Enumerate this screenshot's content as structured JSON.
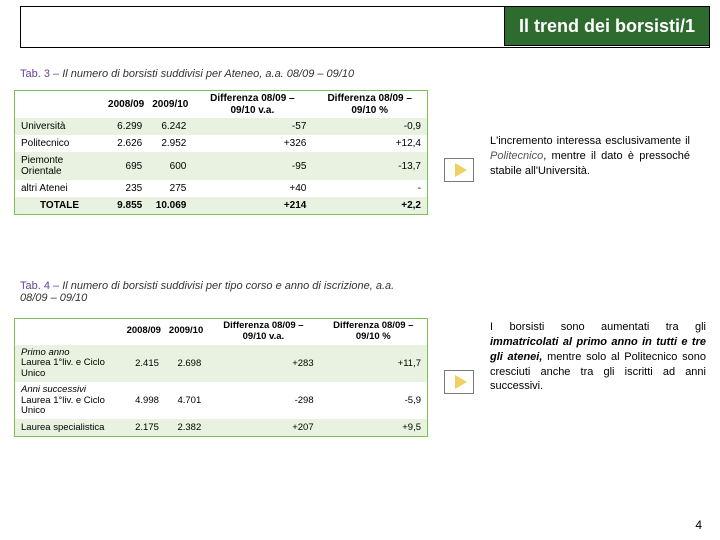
{
  "header": {
    "title": "Il trend dei borsisti/1"
  },
  "tab3": {
    "lead": "Tab. 3 – ",
    "caption": "Il numero di borsisti suddivisi per Ateneo, a.a. 08/09 – 09/10",
    "columns": [
      "",
      "2008/09",
      "2009/10",
      "Differenza 08/09 – 09/10 v.a.",
      "Differenza 08/09 – 09/10 %"
    ],
    "rows": [
      {
        "label": "Università",
        "c1": "6.299",
        "c2": "6.242",
        "c3": "-57",
        "c4": "-0,9"
      },
      {
        "label": "Politecnico",
        "c1": "2.626",
        "c2": "2.952",
        "c3": "+326",
        "c4": "+12,4"
      },
      {
        "label": "Piemonte Orientale",
        "c1": "695",
        "c2": "600",
        "c3": "-95",
        "c4": "-13,7"
      },
      {
        "label": "altri Atenei",
        "c1": "235",
        "c2": "275",
        "c3": "+40",
        "c4": "-"
      }
    ],
    "total": {
      "label": "TOTALE",
      "c1": "9.855",
      "c2": "10.069",
      "c3": "+214",
      "c4": "+2,2"
    }
  },
  "side1": {
    "t1": "L'incremento interessa esclusivamente il ",
    "em": "Politecnico",
    "t2": ", mentre il dato è pressoché stabile all'Università."
  },
  "tab4": {
    "lead": "Tab. 4 – ",
    "caption": "Il numero di borsisti suddivisi per tipo corso e anno di iscrizione, a.a. 08/09 – 09/10",
    "columns": [
      "",
      "2008/09",
      "2009/10",
      "Differenza 08/09 – 09/10 v.a.",
      "Differenza 08/09 – 09/10 %"
    ],
    "rows": [
      {
        "label": "Primo anno\nLaurea 1°liv. e Ciclo Unico",
        "c1": "2.415",
        "c2": "2.698",
        "c3": "+283",
        "c4": "+11,7"
      },
      {
        "label": "Anni successivi\nLaurea 1°liv. e Ciclo Unico",
        "c1": "4.998",
        "c2": "4.701",
        "c3": "-298",
        "c4": "-5,9"
      },
      {
        "label": "Laurea specialistica",
        "c1": "2.175",
        "c2": "2.382",
        "c3": "+207",
        "c4": "+9,5"
      }
    ]
  },
  "side2": {
    "t1": "I borsisti sono aumentati tra gli ",
    "em": "immatricolati al primo anno in tutti e tre gli atenei,",
    "t2": " mentre solo al Politecnico sono cresciuti anche tra gli iscritti ad anni successivi."
  },
  "page": "4"
}
